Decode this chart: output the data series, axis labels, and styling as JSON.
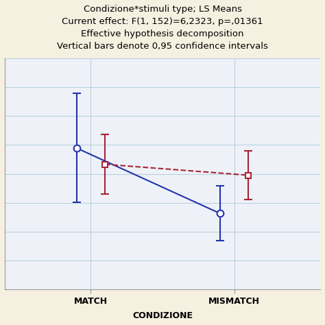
{
  "title_lines": [
    "Condizione*stimuli type; LS Means",
    "Current effect: F(1, 152)=6,2323, p=,01361",
    "Effective hypothesis decomposition",
    "Vertical bars denote 0,95 confidence intervals"
  ],
  "xlabel": "CONDIZIONE",
  "xtick_labels": [
    "MATCH",
    "MISMATCH"
  ],
  "xtick_positions": [
    1,
    2
  ],
  "blue_line": {
    "x": [
      0.9,
      1.9
    ],
    "y": [
      520,
      280
    ],
    "yerr_lower": [
      200,
      100
    ],
    "yerr_upper": [
      200,
      100
    ],
    "color": "#2233aa",
    "marker": "o",
    "linestyle": "-",
    "linewidth": 1.5,
    "markersize": 7,
    "markerfacecolor": "white"
  },
  "red_line": {
    "x": [
      1.1,
      2.1
    ],
    "y": [
      460,
      420
    ],
    "yerr_lower": [
      110,
      90
    ],
    "yerr_upper": [
      110,
      90
    ],
    "color": "#aa2233",
    "marker": "s",
    "linestyle": "--",
    "linewidth": 1.5,
    "markersize": 6,
    "markerfacecolor": "white"
  },
  "ylim": [
    0,
    850
  ],
  "xlim": [
    0.4,
    2.6
  ],
  "yticks": [],
  "grid_color": "#b8cfe0",
  "grid_linewidth": 0.8,
  "bg_color": "#f5f0e0",
  "plot_bg_color": "#eef2f8",
  "title_fontsize": 9.5,
  "xlabel_fontsize": 9,
  "tick_fontsize": 9,
  "cap_size": 4,
  "err_linewidth": 1.5,
  "num_gridlines": 8
}
